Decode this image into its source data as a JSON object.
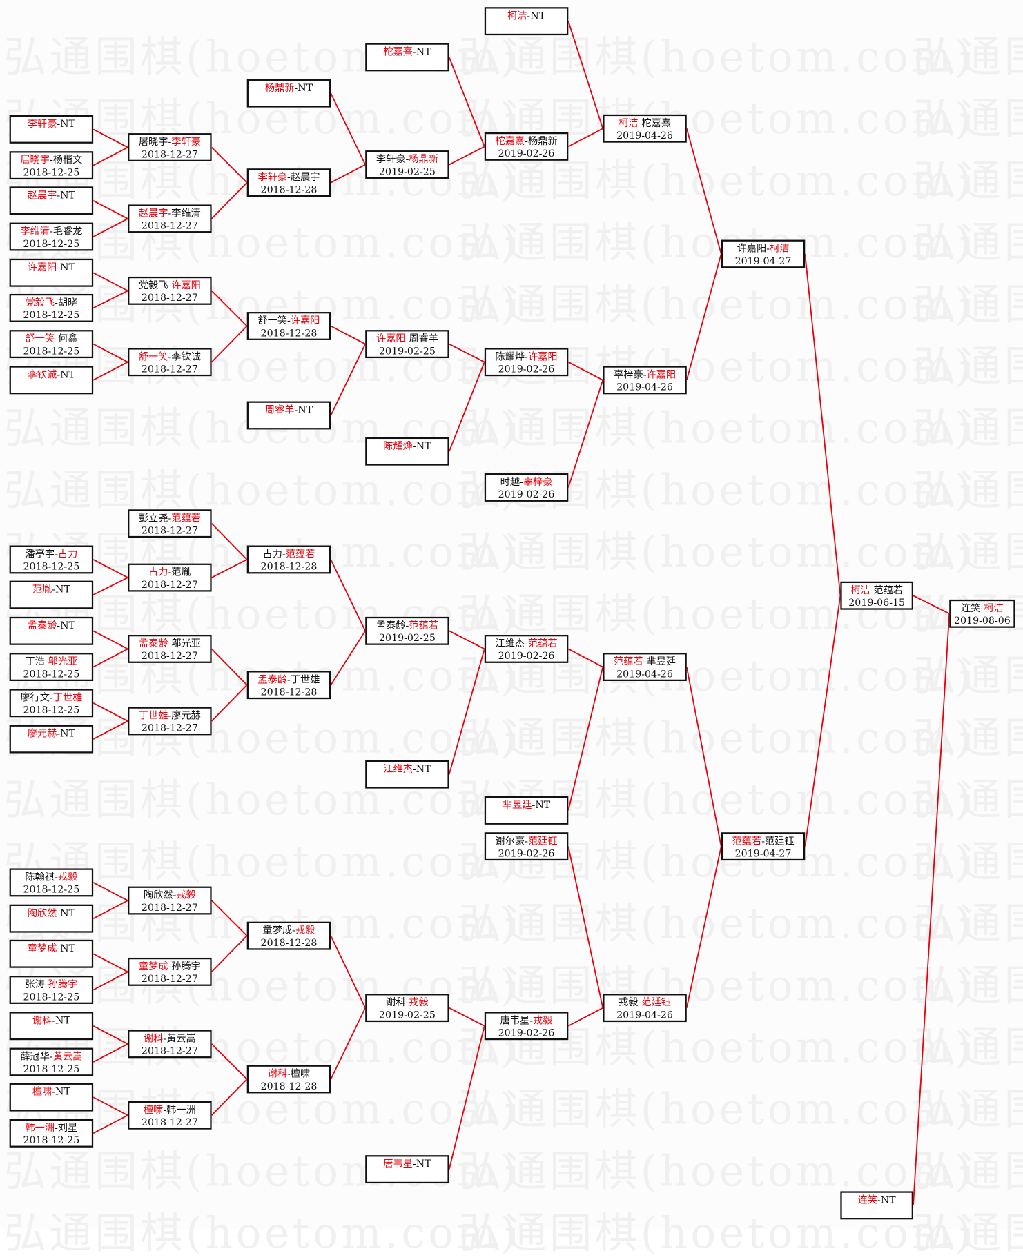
{
  "watermark": "弘通围棋(hoetom.com)",
  "colors": {
    "winner": "#e8000b",
    "line": "#e8000b",
    "border": "#111111"
  },
  "columns": [
    [
      {
        "p1": "李轩豪",
        "p2": "NT",
        "w": 1,
        "date": ""
      },
      {
        "p1": "居晓宇",
        "p2": "杨楷文",
        "w": 1,
        "date": "2018-12-25"
      },
      {
        "p1": "赵晨宇",
        "p2": "NT",
        "w": 1,
        "date": ""
      },
      {
        "p1": "李维清",
        "p2": "毛睿龙",
        "w": 1,
        "date": "2018-12-25"
      },
      {
        "p1": "许嘉阳",
        "p2": "NT",
        "w": 1,
        "date": ""
      },
      {
        "p1": "党毅飞",
        "p2": "胡晓",
        "w": 1,
        "date": "2018-12-25"
      },
      {
        "p1": "舒一笑",
        "p2": "何鑫",
        "w": 1,
        "date": "2018-12-25"
      },
      {
        "p1": "李钦诚",
        "p2": "NT",
        "w": 1,
        "date": ""
      },
      {
        "p1": "潘亭宇",
        "p2": "古力",
        "w": 2,
        "date": "2018-12-25"
      },
      {
        "p1": "范胤",
        "p2": "NT",
        "w": 1,
        "date": ""
      },
      {
        "p1": "孟泰龄",
        "p2": "NT",
        "w": 1,
        "date": ""
      },
      {
        "p1": "丁浩",
        "p2": "邬光亚",
        "w": 2,
        "date": "2018-12-25"
      },
      {
        "p1": "廖行文",
        "p2": "丁世雄",
        "w": 2,
        "date": "2018-12-25"
      },
      {
        "p1": "廖元赫",
        "p2": "NT",
        "w": 1,
        "date": ""
      },
      {
        "p1": "陈翰祺",
        "p2": "戎毅",
        "w": 2,
        "date": "2018-12-25"
      },
      {
        "p1": "陶欣然",
        "p2": "NT",
        "w": 1,
        "date": ""
      },
      {
        "p1": "童梦成",
        "p2": "NT",
        "w": 1,
        "date": ""
      },
      {
        "p1": "张涛",
        "p2": "孙腾宇",
        "w": 2,
        "date": "2018-12-25"
      },
      {
        "p1": "谢科",
        "p2": "NT",
        "w": 1,
        "date": ""
      },
      {
        "p1": "薛冠华",
        "p2": "黄云嵩",
        "w": 2,
        "date": "2018-12-25"
      },
      {
        "p1": "檀啸",
        "p2": "NT",
        "w": 1,
        "date": ""
      },
      {
        "p1": "韩一洲",
        "p2": "刘星",
        "w": 1,
        "date": "2018-12-25"
      }
    ],
    [
      {
        "p1": "屠晓宇",
        "p2": "李轩豪",
        "w": 2,
        "date": "2018-12-27"
      },
      {
        "p1": "赵晨宇",
        "p2": "李维清",
        "w": 1,
        "date": "2018-12-27"
      },
      {
        "p1": "党毅飞",
        "p2": "许嘉阳",
        "w": 2,
        "date": "2018-12-27"
      },
      {
        "p1": "舒一笑",
        "p2": "李钦诚",
        "w": 1,
        "date": "2018-12-27"
      },
      {
        "p1": "彭立尧",
        "p2": "范蕴若",
        "w": 2,
        "date": "2018-12-27"
      },
      {
        "p1": "古力",
        "p2": "范胤",
        "w": 1,
        "date": "2018-12-27"
      },
      {
        "p1": "孟泰龄",
        "p2": "邬光亚",
        "w": 1,
        "date": "2018-12-27"
      },
      {
        "p1": "丁世雄",
        "p2": "廖元赫",
        "w": 1,
        "date": "2018-12-27"
      },
      {
        "p1": "陶欣然",
        "p2": "戎毅",
        "w": 2,
        "date": "2018-12-27"
      },
      {
        "p1": "童梦成",
        "p2": "孙腾宇",
        "w": 1,
        "date": "2018-12-27"
      },
      {
        "p1": "谢科",
        "p2": "黄云嵩",
        "w": 1,
        "date": "2018-12-27"
      },
      {
        "p1": "檀啸",
        "p2": "韩一洲",
        "w": 1,
        "date": "2018-12-27"
      }
    ],
    [
      {
        "p1": "杨鼎新",
        "p2": "NT",
        "w": 1,
        "date": ""
      },
      {
        "p1": "李轩豪",
        "p2": "赵晨宇",
        "w": 1,
        "date": "2018-12-28"
      },
      {
        "p1": "舒一笑",
        "p2": "许嘉阳",
        "w": 2,
        "date": "2018-12-28"
      },
      {
        "p1": "周睿羊",
        "p2": "NT",
        "w": 1,
        "date": ""
      },
      {
        "p1": "古力",
        "p2": "范蕴若",
        "w": 2,
        "date": "2018-12-28"
      },
      {
        "p1": "孟泰龄",
        "p2": "丁世雄",
        "w": 1,
        "date": "2018-12-28"
      },
      {
        "p1": "童梦成",
        "p2": "戎毅",
        "w": 2,
        "date": "2018-12-28"
      },
      {
        "p1": "谢科",
        "p2": "檀啸",
        "w": 1,
        "date": "2018-12-28"
      }
    ],
    [
      {
        "p1": "柁嘉熹",
        "p2": "NT",
        "w": 1,
        "date": ""
      },
      {
        "p1": "李轩豪",
        "p2": "杨鼎新",
        "w": 2,
        "date": "2019-02-25"
      },
      {
        "p1": "许嘉阳",
        "p2": "周睿羊",
        "w": 1,
        "date": "2019-02-25"
      },
      {
        "p1": "陈耀烨",
        "p2": "NT",
        "w": 1,
        "date": ""
      },
      {
        "p1": "孟泰龄",
        "p2": "范蕴若",
        "w": 2,
        "date": "2019-02-25"
      },
      {
        "p1": "江维杰",
        "p2": "NT",
        "w": 1,
        "date": ""
      },
      {
        "p1": "谢科",
        "p2": "戎毅",
        "w": 2,
        "date": "2019-02-25"
      },
      {
        "p1": "唐韦星",
        "p2": "NT",
        "w": 1,
        "date": ""
      }
    ],
    [
      {
        "p1": "柯洁",
        "p2": "NT",
        "w": 1,
        "date": ""
      },
      {
        "p1": "柁嘉熹",
        "p2": "杨鼎新",
        "w": 1,
        "date": "2019-02-26"
      },
      {
        "p1": "陈耀烨",
        "p2": "许嘉阳",
        "w": 2,
        "date": "2019-02-26"
      },
      {
        "p1": "时越",
        "p2": "辜梓豪",
        "w": 2,
        "date": "2019-02-26"
      },
      {
        "p1": "江维杰",
        "p2": "范蕴若",
        "w": 2,
        "date": "2019-02-26"
      },
      {
        "p1": "芈昱廷",
        "p2": "NT",
        "w": 1,
        "date": ""
      },
      {
        "p1": "谢尔豪",
        "p2": "范廷钰",
        "w": 2,
        "date": "2019-02-26"
      },
      {
        "p1": "唐韦星",
        "p2": "戎毅",
        "w": 2,
        "date": "2019-02-26"
      }
    ],
    [
      {
        "p1": "柯洁",
        "p2": "柁嘉熹",
        "w": 1,
        "date": "2019-04-26"
      },
      {
        "p1": "辜梓豪",
        "p2": "许嘉阳",
        "w": 2,
        "date": "2019-04-26"
      },
      {
        "p1": "范蕴若",
        "p2": "芈昱廷",
        "w": 1,
        "date": "2019-04-26"
      },
      {
        "p1": "戎毅",
        "p2": "范廷钰",
        "w": 2,
        "date": "2019-04-26"
      }
    ],
    [
      {
        "p1": "许嘉阳",
        "p2": "柯洁",
        "w": 2,
        "date": "2019-04-27"
      },
      {
        "p1": "范蕴若",
        "p2": "范廷钰",
        "w": 1,
        "date": "2019-04-27"
      }
    ],
    [
      {
        "p1": "柯洁",
        "p2": "范蕴若",
        "w": 1,
        "date": "2019-06-15"
      },
      {
        "p1": "连笑",
        "p2": "NT",
        "w": 1,
        "date": ""
      }
    ],
    [
      {
        "p1": "连笑",
        "p2": "柯洁",
        "w": 2,
        "date": "2019-08-06"
      }
    ]
  ]
}
